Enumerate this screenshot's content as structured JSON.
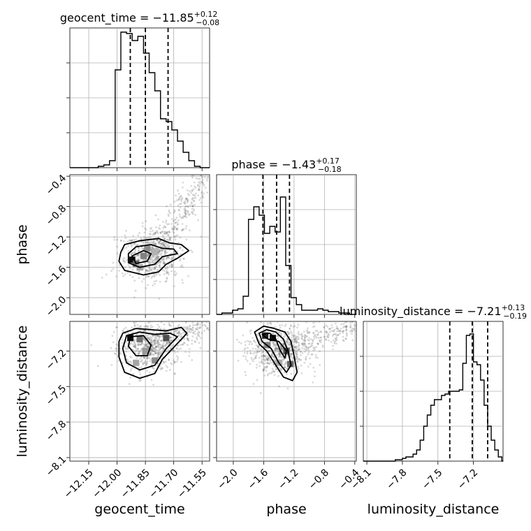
{
  "chart_data": {
    "type": "corner",
    "parameters": [
      "geocent_time",
      "phase",
      "luminosity_distance"
    ],
    "axes": {
      "geocent_time": {
        "label": "geocent_time",
        "range": [
          -12.25,
          -11.51
        ],
        "ticks": [
          -12.15,
          -12.0,
          -11.85,
          -11.7,
          -11.55
        ],
        "tick_labels": [
          "−12.15",
          "−12.00",
          "−11.85",
          "−11.70",
          "−11.55"
        ]
      },
      "phase": {
        "label": "phase",
        "range": [
          -2.22,
          -0.38
        ],
        "ticks": [
          -2.0,
          -1.6,
          -1.2,
          -0.8,
          -0.4
        ],
        "tick_labels": [
          "−2.0",
          "−1.6",
          "−1.2",
          "−0.8",
          "−0.4"
        ]
      },
      "luminosity_distance": {
        "label": "luminosity_distance",
        "range": [
          -8.13,
          -6.95
        ],
        "ticks": [
          -8.1,
          -7.8,
          -7.5,
          -7.2
        ],
        "tick_labels": [
          "−8.1",
          "−7.8",
          "−7.5",
          "−7.2"
        ]
      }
    },
    "marginals": [
      {
        "parameter": "geocent_time",
        "title": {
          "prefix": "geocent_time = ",
          "value": "−11.85",
          "plus": "+0.12",
          "minus": "−0.08"
        },
        "quantiles": [
          -11.93,
          -11.85,
          -11.73
        ],
        "bin_edges": [
          -12.25,
          -12.22,
          -12.19,
          -12.16,
          -12.13,
          -12.1,
          -12.07,
          -12.04,
          -12.01,
          -11.98,
          -11.95,
          -11.92,
          -11.89,
          -11.86,
          -11.83,
          -11.8,
          -11.77,
          -11.74,
          -11.71,
          -11.68,
          -11.65,
          -11.62,
          -11.59,
          -11.56,
          -11.53,
          -11.51
        ],
        "counts": [
          0,
          0,
          0,
          0,
          0,
          1,
          2,
          5,
          70,
          97,
          96,
          91,
          94,
          82,
          68,
          55,
          35,
          33,
          27,
          19,
          11,
          5,
          1,
          0,
          0
        ],
        "ylim": [
          0,
          100
        ]
      },
      {
        "parameter": "phase",
        "title": {
          "prefix": "phase = ",
          "value": "−1.43",
          "plus": "+0.17",
          "minus": "−0.18"
        },
        "quantiles": [
          -1.61,
          -1.43,
          -1.26
        ],
        "bin_edges": [
          -2.22,
          -2.15,
          -2.08,
          -2.01,
          -1.94,
          -1.87,
          -1.8,
          -1.73,
          -1.66,
          -1.59,
          -1.52,
          -1.45,
          -1.38,
          -1.31,
          -1.24,
          -1.17,
          -1.1,
          -1.03,
          -0.96,
          -0.89,
          -0.82,
          -0.75,
          -0.68,
          -0.61,
          -0.54,
          -0.47,
          -0.4,
          -0.38
        ],
        "counts": [
          0,
          1,
          1,
          3,
          4,
          13,
          68,
          77,
          71,
          58,
          63,
          59,
          84,
          35,
          12,
          7,
          3,
          3,
          3,
          4,
          3,
          2,
          2,
          1,
          1,
          0,
          0
        ],
        "ylim": [
          0,
          100
        ]
      },
      {
        "parameter": "luminosity_distance",
        "title": {
          "prefix": "luminosity_distance = ",
          "value": "−7.21",
          "plus": "+0.13",
          "minus": "−0.19"
        },
        "quantiles": [
          -7.4,
          -7.21,
          -7.08
        ],
        "bin_edges": [
          -8.13,
          -8.1,
          -8.07,
          -8.04,
          -8.01,
          -7.98,
          -7.95,
          -7.92,
          -7.89,
          -7.86,
          -7.83,
          -7.8,
          -7.77,
          -7.74,
          -7.71,
          -7.68,
          -7.65,
          -7.62,
          -7.59,
          -7.56,
          -7.53,
          -7.5,
          -7.47,
          -7.44,
          -7.41,
          -7.38,
          -7.35,
          -7.32,
          -7.29,
          -7.26,
          -7.23,
          -7.2,
          -7.17,
          -7.14,
          -7.11,
          -7.08,
          -7.05,
          -7.02,
          -6.99,
          -6.96,
          -6.95
        ],
        "counts": [
          0,
          0,
          0,
          0,
          0,
          0,
          0,
          0,
          0,
          1,
          1,
          2,
          3,
          3,
          5,
          8,
          15,
          25,
          33,
          40,
          44,
          44,
          47,
          48,
          50,
          50,
          50,
          51,
          70,
          90,
          91,
          71,
          69,
          58,
          40,
          25,
          15,
          8,
          3,
          0
        ],
        "ylim": [
          0,
          100
        ]
      }
    ],
    "pairs": [
      {
        "x": "geocent_time",
        "y": "phase",
        "density_cells": [
          {
            "x": -11.92,
            "y": -1.5,
            "v": 0.95
          },
          {
            "x": -11.9,
            "y": -1.55,
            "v": 0.6
          },
          {
            "x": -11.86,
            "y": -1.45,
            "v": 0.5
          },
          {
            "x": -11.84,
            "y": -1.35,
            "v": 0.45
          },
          {
            "x": -11.8,
            "y": -1.4,
            "v": 0.3
          },
          {
            "x": -11.88,
            "y": -1.6,
            "v": 0.35
          }
        ],
        "contours": [
          [
            [
              -11.98,
              -1.4
            ],
            [
              -11.96,
              -1.3
            ],
            [
              -11.88,
              -1.25
            ],
            [
              -11.78,
              -1.22
            ],
            [
              -11.72,
              -1.28
            ],
            [
              -11.66,
              -1.3
            ],
            [
              -11.62,
              -1.38
            ],
            [
              -11.68,
              -1.48
            ],
            [
              -11.74,
              -1.56
            ],
            [
              -11.78,
              -1.66
            ],
            [
              -11.86,
              -1.7
            ],
            [
              -11.96,
              -1.64
            ],
            [
              -11.99,
              -1.52
            ]
          ],
          [
            [
              -11.94,
              -1.42
            ],
            [
              -11.9,
              -1.33
            ],
            [
              -11.82,
              -1.3
            ],
            [
              -11.76,
              -1.35
            ],
            [
              -11.7,
              -1.36
            ],
            [
              -11.68,
              -1.42
            ],
            [
              -11.76,
              -1.46
            ],
            [
              -11.8,
              -1.56
            ],
            [
              -11.88,
              -1.6
            ],
            [
              -11.94,
              -1.54
            ]
          ],
          [
            [
              -11.92,
              -1.45
            ],
            [
              -11.86,
              -1.38
            ],
            [
              -11.82,
              -1.42
            ],
            [
              -11.84,
              -1.52
            ],
            [
              -11.9,
              -1.55
            ]
          ]
        ]
      },
      {
        "x": "geocent_time",
        "y": "luminosity_distance",
        "density_cells": [
          {
            "x": -11.93,
            "y": -7.09,
            "v": 0.95
          },
          {
            "x": -11.88,
            "y": -7.1,
            "v": 0.55
          },
          {
            "x": -11.85,
            "y": -7.2,
            "v": 0.4
          },
          {
            "x": -11.8,
            "y": -7.28,
            "v": 0.45
          },
          {
            "x": -11.9,
            "y": -7.3,
            "v": 0.35
          },
          {
            "x": -11.74,
            "y": -7.09,
            "v": 0.7
          }
        ],
        "contours": [
          [
            [
              -11.97,
              -7.05
            ],
            [
              -11.9,
              -7.01
            ],
            [
              -11.82,
              -7.02
            ],
            [
              -11.74,
              -7.03
            ],
            [
              -11.66,
              -7.0
            ],
            [
              -11.63,
              -7.05
            ],
            [
              -11.7,
              -7.17
            ],
            [
              -11.76,
              -7.27
            ],
            [
              -11.8,
              -7.39
            ],
            [
              -11.88,
              -7.43
            ],
            [
              -11.96,
              -7.38
            ],
            [
              -11.99,
              -7.25
            ],
            [
              -11.99,
              -7.12
            ]
          ],
          [
            [
              -11.95,
              -7.07
            ],
            [
              -11.88,
              -7.04
            ],
            [
              -11.8,
              -7.06
            ],
            [
              -11.72,
              -7.05
            ],
            [
              -11.68,
              -7.08
            ],
            [
              -11.74,
              -7.18
            ],
            [
              -11.8,
              -7.32
            ],
            [
              -11.88,
              -7.36
            ],
            [
              -11.95,
              -7.3
            ],
            [
              -11.97,
              -7.18
            ]
          ],
          [
            [
              -11.93,
              -7.08
            ],
            [
              -11.86,
              -7.07
            ],
            [
              -11.82,
              -7.15
            ],
            [
              -11.84,
              -7.24
            ],
            [
              -11.9,
              -7.24
            ],
            [
              -11.94,
              -7.16
            ]
          ]
        ]
      },
      {
        "x": "phase",
        "y": "luminosity_distance",
        "density_cells": [
          {
            "x": -1.58,
            "y": -7.07,
            "v": 0.85
          },
          {
            "x": -1.48,
            "y": -7.09,
            "v": 0.95
          },
          {
            "x": -1.55,
            "y": -7.15,
            "v": 0.5
          },
          {
            "x": -1.3,
            "y": -7.2,
            "v": 0.7
          },
          {
            "x": -1.4,
            "y": -7.3,
            "v": 0.35
          },
          {
            "x": -1.25,
            "y": -7.31,
            "v": 0.6
          }
        ],
        "contours": [
          [
            [
              -1.72,
              -7.04
            ],
            [
              -1.6,
              -6.99
            ],
            [
              -1.46,
              -7.01
            ],
            [
              -1.32,
              -7.04
            ],
            [
              -1.24,
              -7.12
            ],
            [
              -1.2,
              -7.24
            ],
            [
              -1.16,
              -7.38
            ],
            [
              -1.22,
              -7.45
            ],
            [
              -1.34,
              -7.42
            ],
            [
              -1.46,
              -7.3
            ],
            [
              -1.56,
              -7.2
            ],
            [
              -1.66,
              -7.14
            ]
          ],
          [
            [
              -1.66,
              -7.05
            ],
            [
              -1.56,
              -7.02
            ],
            [
              -1.44,
              -7.04
            ],
            [
              -1.34,
              -7.1
            ],
            [
              -1.28,
              -7.2
            ],
            [
              -1.24,
              -7.32
            ],
            [
              -1.3,
              -7.38
            ],
            [
              -1.4,
              -7.3
            ],
            [
              -1.5,
              -7.18
            ],
            [
              -1.62,
              -7.12
            ]
          ],
          [
            [
              -1.62,
              -7.06
            ],
            [
              -1.52,
              -7.05
            ],
            [
              -1.44,
              -7.1
            ],
            [
              -1.38,
              -7.2
            ],
            [
              -1.32,
              -7.26
            ],
            [
              -1.3,
              -7.2
            ],
            [
              -1.4,
              -7.12
            ],
            [
              -1.54,
              -7.1
            ]
          ]
        ]
      }
    ]
  }
}
